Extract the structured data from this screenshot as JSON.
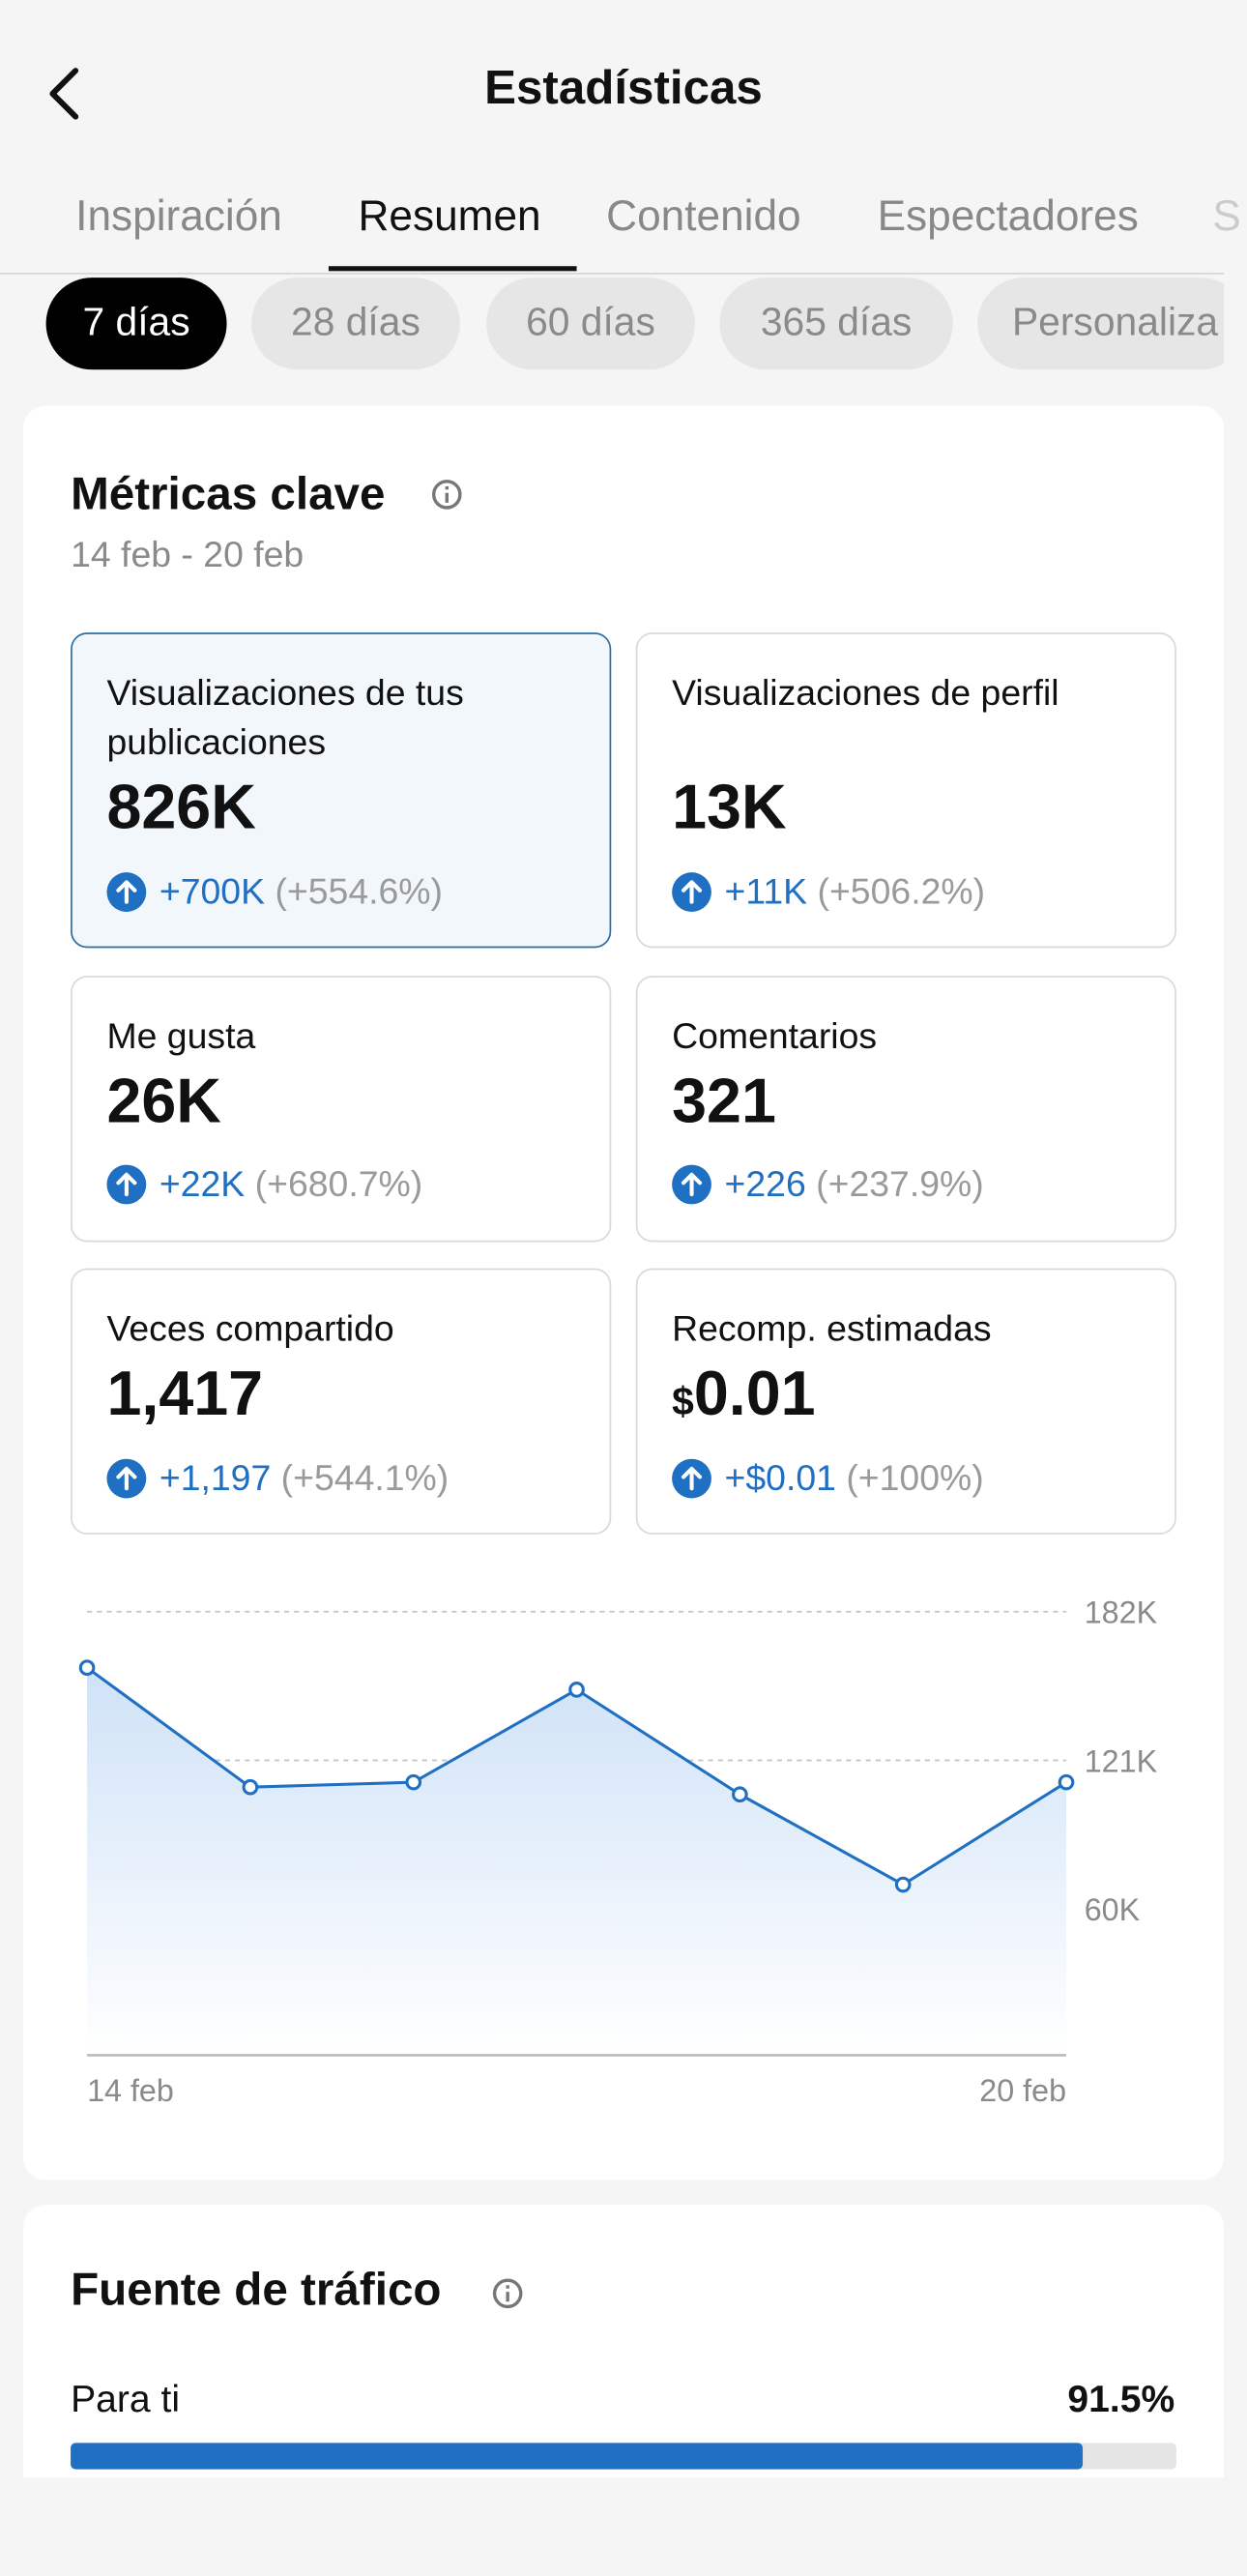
{
  "header": {
    "title": "Estadísticas"
  },
  "tabs": [
    "Inspiración",
    "Resumen",
    "Contenido",
    "Espectadores",
    "S"
  ],
  "periods": [
    "7 días",
    "28 días",
    "60 días",
    "365 días",
    "Personaliza"
  ],
  "metrics": {
    "title": "Métricas clave",
    "date_range": "14 feb - 20 feb",
    "cards": [
      {
        "label": "Visualizaciones de tus publicaciones",
        "value": "826K",
        "change": "+700K",
        "change_pct": "(+554.6%)"
      },
      {
        "label": "Visualizaciones de perfil",
        "value": "13K",
        "change": "+11K",
        "change_pct": "(+506.2%)"
      },
      {
        "label": "Me gusta",
        "value": "26K",
        "change": "+22K",
        "change_pct": "(+680.7%)"
      },
      {
        "label": "Comentarios",
        "value": "321",
        "change": "+226",
        "change_pct": "(+237.9%)"
      },
      {
        "label": "Veces compartido",
        "value": "1,417",
        "change": "+1,197",
        "change_pct": "(+544.1%)"
      },
      {
        "label": "Recomp. estimadas",
        "currency": "$",
        "value": "0.01",
        "change": "+$0.01",
        "change_pct": "(+100%)"
      }
    ]
  },
  "chart_data": {
    "type": "area",
    "categories": [
      "14 feb",
      null,
      null,
      null,
      null,
      null,
      "20 feb"
    ],
    "values": [
      159000,
      110000,
      112000,
      150000,
      107000,
      70000,
      112000
    ],
    "color": "#1f6fc2",
    "ylim": [
      0,
      182000
    ],
    "yticks": [
      {
        "value": 60000,
        "label": "60K"
      },
      {
        "value": 121000,
        "label": "121K"
      },
      {
        "value": 182000,
        "label": "182K"
      }
    ],
    "grid": true
  },
  "traffic": {
    "title": "Fuente de tráfico",
    "rows": [
      {
        "label": "Para ti",
        "value": 91.5,
        "value_label": "91.5%"
      }
    ]
  }
}
